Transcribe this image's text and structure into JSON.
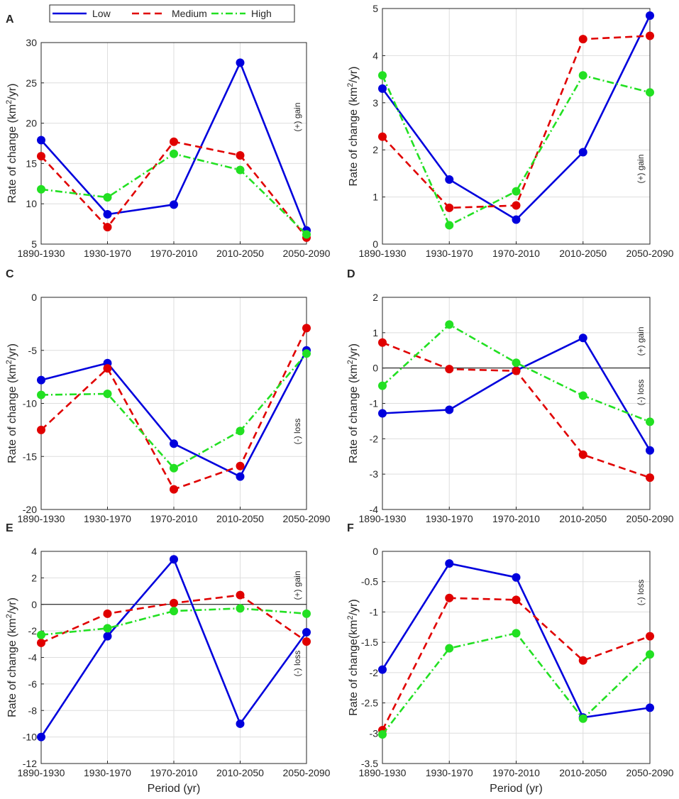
{
  "figure": {
    "legend": [
      {
        "name": "Low",
        "color": "#0000DD",
        "dash": "solid"
      },
      {
        "name": "Medium",
        "color": "#E00000",
        "dash": "dashed"
      },
      {
        "name": "High",
        "color": "#22E022",
        "dash": "dashdot"
      }
    ],
    "xlabel": "Period (yr)"
  },
  "chart_data": [
    {
      "type": "line",
      "panel": "A",
      "categories": [
        "1890-1930",
        "1930-1970",
        "1970-2010",
        "2010-2050",
        "2050-2090"
      ],
      "ylabel": "Rate of change (km²/yr)",
      "ylabel_main": "Rate of change (km",
      "ylabel_sup": "2",
      "ylabel_tail": "/yr)",
      "ylim": [
        5,
        30
      ],
      "yticks": [
        5,
        10,
        15,
        20,
        25,
        30
      ],
      "ytick_labels": [
        "5",
        "10",
        "15",
        "20",
        "25",
        "30"
      ],
      "zero_line": false,
      "annotations": [
        "(+) gain"
      ],
      "xlabel": "",
      "series": [
        {
          "name": "Low",
          "values": [
            17.9,
            8.7,
            9.9,
            27.5,
            6.7
          ]
        },
        {
          "name": "Medium",
          "values": [
            15.9,
            7.1,
            17.7,
            16.0,
            5.8
          ]
        },
        {
          "name": "High",
          "values": [
            11.8,
            10.8,
            16.2,
            14.2,
            6.2
          ]
        }
      ]
    },
    {
      "type": "line",
      "panel": "B",
      "categories": [
        "1890-1930",
        "1930-1970",
        "1970-2010",
        "2010-2050",
        "2050-2090"
      ],
      "ylabel": "Rate of change (km²/yr)",
      "ylabel_main": "Rate of change (km",
      "ylabel_sup": "2",
      "ylabel_tail": "/yr)",
      "ylim": [
        0,
        5
      ],
      "yticks": [
        0,
        1,
        2,
        3,
        4,
        5
      ],
      "ytick_labels": [
        "0",
        "1",
        "2",
        "3",
        "4",
        "5"
      ],
      "zero_line": false,
      "annotations": [
        "(+) gain"
      ],
      "xlabel": "",
      "series": [
        {
          "name": "Low",
          "values": [
            3.3,
            1.37,
            0.52,
            1.95,
            4.85
          ]
        },
        {
          "name": "Medium",
          "values": [
            2.28,
            0.77,
            0.82,
            4.35,
            4.42
          ]
        },
        {
          "name": "High",
          "values": [
            3.58,
            0.4,
            1.12,
            3.58,
            3.22
          ]
        }
      ]
    },
    {
      "type": "line",
      "panel": "C",
      "categories": [
        "1890-1930",
        "1930-1970",
        "1970-2010",
        "2010-2050",
        "2050-2090"
      ],
      "ylabel": "Rate of change (km²/yr)",
      "ylabel_main": "Rate of change (km",
      "ylabel_sup": "2",
      "ylabel_tail": "/yr)",
      "ylim": [
        -20,
        0
      ],
      "yticks": [
        -20,
        -15,
        -10,
        -5,
        0
      ],
      "ytick_labels": [
        "-20",
        "-15",
        "-10",
        "-5",
        "0"
      ],
      "zero_line": false,
      "annotations": [
        "(-) loss"
      ],
      "xlabel": "",
      "series": [
        {
          "name": "Low",
          "values": [
            -7.8,
            -6.2,
            -13.8,
            -16.9,
            -5.0
          ]
        },
        {
          "name": "Medium",
          "values": [
            -12.5,
            -6.7,
            -18.1,
            -15.9,
            -2.9
          ]
        },
        {
          "name": "High",
          "values": [
            -9.2,
            -9.1,
            -16.1,
            -12.6,
            -5.3
          ]
        }
      ]
    },
    {
      "type": "line",
      "panel": "D",
      "categories": [
        "1890-1930",
        "1930-1970",
        "1970-2010",
        "2010-2050",
        "2050-2090"
      ],
      "ylabel": "Rate of change (km²/yr)",
      "ylabel_main": "Rate of change (km",
      "ylabel_sup": "2",
      "ylabel_tail": "/yr)",
      "ylim": [
        -4,
        2
      ],
      "yticks": [
        -4,
        -3,
        -2,
        -1,
        0,
        1,
        2
      ],
      "ytick_labels": [
        "-4",
        "-3",
        "-2",
        "-1",
        "0",
        "1",
        "2"
      ],
      "zero_line": true,
      "annotations": [
        "(+) gain",
        "(-) loss"
      ],
      "xlabel": "",
      "series": [
        {
          "name": "Low",
          "values": [
            -1.28,
            -1.18,
            -0.07,
            0.85,
            -2.33
          ]
        },
        {
          "name": "Medium",
          "values": [
            0.72,
            -0.03,
            -0.08,
            -2.45,
            -3.1
          ]
        },
        {
          "name": "High",
          "values": [
            -0.5,
            1.23,
            0.15,
            -0.78,
            -1.52
          ]
        }
      ]
    },
    {
      "type": "line",
      "panel": "E",
      "categories": [
        "1890-1930",
        "1930-1970",
        "1970-2010",
        "2010-2050",
        "2050-2090"
      ],
      "ylabel": "Rate of change (km²/yr)",
      "ylabel_main": "Rate of change (km",
      "ylabel_sup": "2",
      "ylabel_tail": "/yr)",
      "ylim": [
        -12,
        4
      ],
      "yticks": [
        -12,
        -10,
        -8,
        -6,
        -4,
        -2,
        0,
        2,
        4
      ],
      "ytick_labels": [
        "-12",
        "-10",
        "-8",
        "-6",
        "-4",
        "-2",
        "0",
        "2",
        "4"
      ],
      "zero_line": true,
      "annotations": [
        "(+) gain",
        "(-) loss"
      ],
      "xlabel": "Period (yr)",
      "series": [
        {
          "name": "Low",
          "values": [
            -10.0,
            -2.4,
            3.4,
            -9.0,
            -2.1
          ]
        },
        {
          "name": "Medium",
          "values": [
            -2.9,
            -0.7,
            0.1,
            0.7,
            -2.8
          ]
        },
        {
          "name": "High",
          "values": [
            -2.3,
            -1.8,
            -0.5,
            -0.3,
            -0.7
          ]
        }
      ]
    },
    {
      "type": "line",
      "panel": "F",
      "categories": [
        "1890-1930",
        "1930-1970",
        "1970-2010",
        "2010-2050",
        "2050-2090"
      ],
      "ylabel": "Rate of change(km²/yr)",
      "ylabel_main": "Rate of change(km",
      "ylabel_sup": "2",
      "ylabel_tail": "/yr)",
      "ylim": [
        -3.5,
        0
      ],
      "yticks": [
        -3.5,
        -3,
        -2.5,
        -2,
        -1.5,
        -1,
        -0.5,
        0
      ],
      "ytick_labels": [
        "-3.5",
        "-3",
        "-2.5",
        "-2",
        "-1.5",
        "-1",
        "-0.5",
        "0"
      ],
      "zero_line": false,
      "annotations": [
        "(-) loss"
      ],
      "xlabel": "Period (yr)",
      "series": [
        {
          "name": "Low",
          "values": [
            -1.95,
            -0.2,
            -0.43,
            -2.74,
            -2.58
          ]
        },
        {
          "name": "Medium",
          "values": [
            -2.95,
            -0.77,
            -0.8,
            -1.8,
            -1.4
          ]
        },
        {
          "name": "High",
          "values": [
            -3.02,
            -1.6,
            -1.35,
            -2.76,
            -1.7
          ]
        }
      ]
    }
  ]
}
